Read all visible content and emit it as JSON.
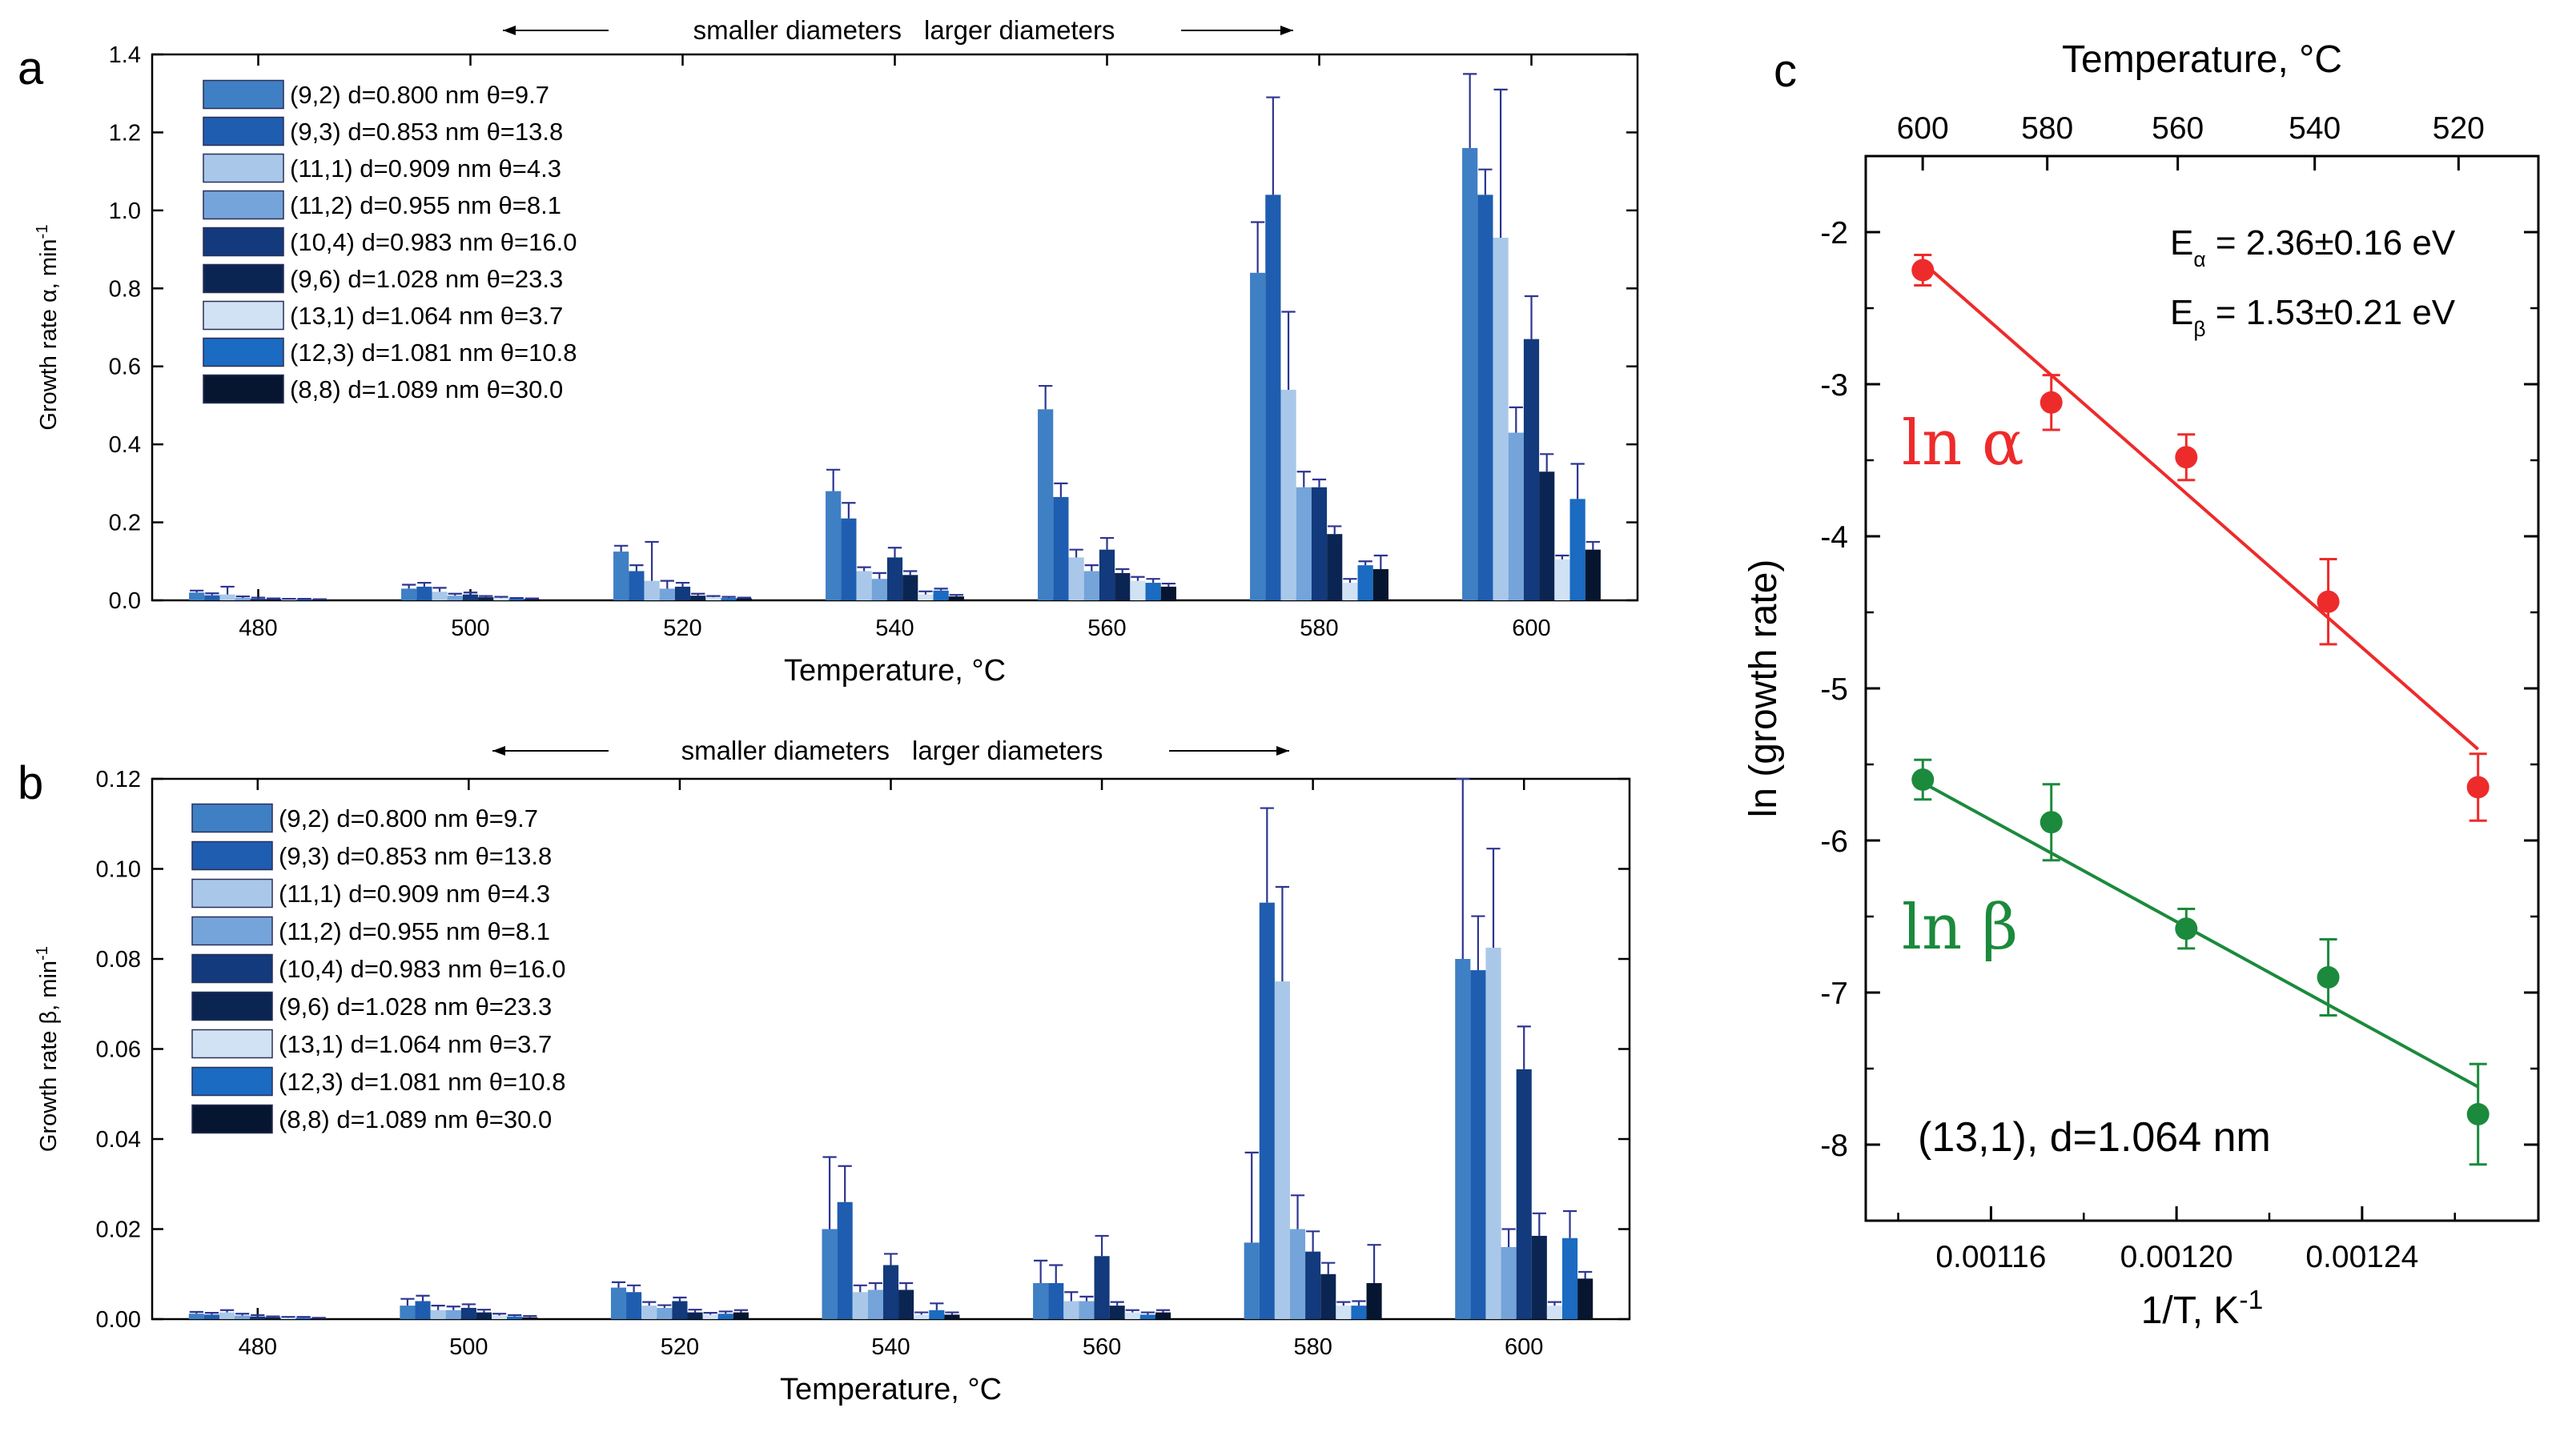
{
  "chart_data": [
    {
      "panel": "a",
      "type": "bar",
      "categories": [
        "480",
        "500",
        "520",
        "540",
        "560",
        "580",
        "600"
      ],
      "xlabel": "Temperature, °C",
      "ylabel": "Growth rate α, min-1",
      "ylim": [
        0,
        1.4
      ],
      "yticks": [
        "0.0",
        "0.2",
        "0.4",
        "0.6",
        "0.8",
        "1.0",
        "1.2",
        "1.4"
      ],
      "arrow_left": "smaller diameters",
      "arrow_right": "larger diameters",
      "legend_position": "top-left",
      "series": [
        {
          "name": "(9,2) d=0.800 nm θ=9.7",
          "color": "#3f7fc4",
          "values": [
            0.02,
            0.03,
            0.125,
            0.28,
            0.49,
            0.84,
            1.16
          ],
          "errors": [
            0.005,
            0.01,
            0.015,
            0.055,
            0.06,
            0.13,
            0.19
          ]
        },
        {
          "name": "(9,3) d=0.853 nm θ=13.8",
          "color": "#1f5db0",
          "values": [
            0.013,
            0.035,
            0.075,
            0.21,
            0.265,
            1.04,
            1.04
          ],
          "errors": [
            0.005,
            0.01,
            0.015,
            0.04,
            0.035,
            0.25,
            0.065
          ]
        },
        {
          "name": "(11,1) d=0.909 nm θ=4.3",
          "color": "#a9c8e9",
          "values": [
            0.015,
            0.022,
            0.05,
            0.075,
            0.11,
            0.54,
            0.93
          ],
          "errors": [
            0.02,
            0.01,
            0.1,
            0.01,
            0.02,
            0.2,
            0.38
          ]
        },
        {
          "name": "(11,2) d=0.955 nm θ=8.1",
          "color": "#74a4d9",
          "values": [
            0.006,
            0.012,
            0.03,
            0.055,
            0.075,
            0.29,
            0.43
          ],
          "errors": [
            0.004,
            0.005,
            0.02,
            0.015,
            0.015,
            0.04,
            0.065
          ]
        },
        {
          "name": "(10,4) d=0.983 nm θ=16.0",
          "color": "#123a7c",
          "values": [
            0.004,
            0.015,
            0.035,
            0.11,
            0.13,
            0.29,
            0.67
          ],
          "errors": [
            0.003,
            0.005,
            0.01,
            0.025,
            0.03,
            0.02,
            0.11
          ]
        },
        {
          "name": "(9,6) d=1.028 nm θ=23.3",
          "color": "#0b2553",
          "values": [
            0.003,
            0.008,
            0.012,
            0.065,
            0.07,
            0.17,
            0.33
          ],
          "errors": [
            0.002,
            0.003,
            0.005,
            0.01,
            0.01,
            0.02,
            0.045
          ]
        },
        {
          "name": "(13,1) d=1.064 nm θ=3.7",
          "color": "#d0e2f4",
          "values": [
            0.002,
            0.006,
            0.008,
            0.015,
            0.05,
            0.045,
            0.105
          ],
          "errors": [
            0.002,
            0.003,
            0.003,
            0.008,
            0.01,
            0.01,
            0.01
          ]
        },
        {
          "name": "(12,3) d=1.081 nm θ=10.8",
          "color": "#1a6bc1",
          "values": [
            0.002,
            0.004,
            0.006,
            0.025,
            0.045,
            0.09,
            0.26
          ],
          "errors": [
            0.002,
            0.002,
            0.003,
            0.005,
            0.01,
            0.01,
            0.09
          ]
        },
        {
          "name": "(8,8) d=1.089 nm θ=30.0",
          "color": "#061630",
          "values": [
            0.002,
            0.003,
            0.005,
            0.01,
            0.035,
            0.08,
            0.13
          ],
          "errors": [
            0.001,
            0.002,
            0.002,
            0.004,
            0.008,
            0.035,
            0.02
          ]
        }
      ]
    },
    {
      "panel": "b",
      "type": "bar",
      "categories": [
        "480",
        "500",
        "520",
        "540",
        "560",
        "580",
        "600"
      ],
      "xlabel": "Temperature, °C",
      "ylabel": "Growth rate β, min-1",
      "ylim": [
        0,
        0.12
      ],
      "yticks": [
        "0.00",
        "0.02",
        "0.04",
        "0.06",
        "0.08",
        "0.10",
        "0.12"
      ],
      "arrow_left": "smaller diameters",
      "arrow_right": "larger diameters",
      "legend_position": "top-left",
      "series": [
        {
          "name": "(9,2) d=0.800 nm θ=9.7",
          "color": "#3f7fc4",
          "values": [
            0.0012,
            0.003,
            0.007,
            0.02,
            0.008,
            0.017,
            0.08
          ],
          "errors": [
            0.0004,
            0.0015,
            0.0012,
            0.016,
            0.005,
            0.02,
            0.04
          ]
        },
        {
          "name": "(9,3) d=0.853 nm θ=13.8",
          "color": "#1f5db0",
          "values": [
            0.001,
            0.004,
            0.006,
            0.026,
            0.008,
            0.0925,
            0.0775
          ],
          "errors": [
            0.0004,
            0.0012,
            0.0015,
            0.008,
            0.004,
            0.021,
            0.012
          ]
        },
        {
          "name": "(11,1) d=0.909 nm θ=4.3",
          "color": "#a9c8e9",
          "values": [
            0.0015,
            0.002,
            0.003,
            0.006,
            0.004,
            0.075,
            0.0825
          ],
          "errors": [
            0.0005,
            0.001,
            0.0008,
            0.0015,
            0.002,
            0.021,
            0.022
          ]
        },
        {
          "name": "(11,2) d=0.955 nm θ=8.1",
          "color": "#74a4d9",
          "values": [
            0.0008,
            0.002,
            0.0025,
            0.0065,
            0.004,
            0.02,
            0.016
          ],
          "errors": [
            0.0004,
            0.0008,
            0.0006,
            0.0015,
            0.001,
            0.0075,
            0.004
          ]
        },
        {
          "name": "(10,4) d=0.983 nm θ=16.0",
          "color": "#123a7c",
          "values": [
            0.0006,
            0.0025,
            0.004,
            0.012,
            0.014,
            0.015,
            0.0555
          ],
          "errors": [
            0.0003,
            0.0008,
            0.0008,
            0.0025,
            0.0045,
            0.0045,
            0.0095
          ]
        },
        {
          "name": "(9,6) d=1.028 nm θ=23.3",
          "color": "#0b2553",
          "values": [
            0.0004,
            0.0015,
            0.0015,
            0.0065,
            0.003,
            0.01,
            0.0185
          ],
          "errors": [
            0.0002,
            0.0006,
            0.0006,
            0.0015,
            0.0008,
            0.0025,
            0.005
          ]
        },
        {
          "name": "(13,1) d=1.064 nm θ=3.7",
          "color": "#d0e2f4",
          "values": [
            0.0003,
            0.0008,
            0.001,
            0.001,
            0.0015,
            0.003,
            0.003
          ],
          "errors": [
            0.0002,
            0.0004,
            0.0004,
            0.0005,
            0.0005,
            0.0008,
            0.0008
          ]
        },
        {
          "name": "(12,3) d=1.081 nm θ=10.8",
          "color": "#1a6bc1",
          "values": [
            0.0003,
            0.0006,
            0.0012,
            0.002,
            0.001,
            0.003,
            0.018
          ],
          "errors": [
            0.0002,
            0.0003,
            0.0005,
            0.0015,
            0.0005,
            0.001,
            0.006
          ]
        },
        {
          "name": "(8,8) d=1.089 nm θ=30.0",
          "color": "#061630",
          "values": [
            0.0002,
            0.0004,
            0.0015,
            0.001,
            0.0015,
            0.008,
            0.009
          ],
          "errors": [
            0.0001,
            0.0003,
            0.0005,
            0.0005,
            0.0005,
            0.0085,
            0.0015
          ]
        }
      ]
    },
    {
      "panel": "c",
      "type": "scatter",
      "xlabel": "1/T, K-1",
      "ylabel": "ln (growth rate)",
      "top_xlabel": "Temperature, °C",
      "xlim": [
        0.001133,
        0.001278
      ],
      "ylim": [
        -8.5,
        -1.5
      ],
      "xticks": [
        0.00116,
        0.0012,
        0.00124
      ],
      "xtick_labels": [
        "0.00116",
        "0.00120",
        "0.00124"
      ],
      "yticks": [
        "-2",
        "-3",
        "-4",
        "-5",
        "-6",
        "-7",
        "-8"
      ],
      "top_ticks": [
        "600",
        "580",
        "560",
        "540",
        "520"
      ],
      "annotations": {
        "e_alpha": "E",
        "e_alpha_sub": "α",
        "e_alpha_value": " = 2.36±0.16 eV",
        "e_beta": "E",
        "e_beta_sub": "β",
        "e_beta_value": " = 1.53±0.21 eV",
        "chirality": "(13,1), d=1.064 nm"
      },
      "series": [
        {
          "name": "ln α",
          "color": "#ee2b2b",
          "x": [
            0.0011453,
            0.001173,
            0.0012021,
            0.0012327,
            0.001265
          ],
          "y": [
            -2.25,
            -3.12,
            -3.48,
            -4.43,
            -5.65
          ],
          "errors": [
            0.1,
            0.18,
            0.15,
            0.28,
            0.22
          ],
          "fit": {
            "x": [
              0.0011453,
              0.001265
            ],
            "y": [
              -2.2,
              -5.4
            ]
          }
        },
        {
          "name": "ln β",
          "color": "#1b8a3c",
          "x": [
            0.0011453,
            0.001173,
            0.0012021,
            0.0012327,
            0.001265
          ],
          "y": [
            -5.6,
            -5.88,
            -6.58,
            -6.9,
            -7.8
          ],
          "errors": [
            0.13,
            0.25,
            0.13,
            0.25,
            0.33
          ],
          "fit": {
            "x": [
              0.0011453,
              0.001265
            ],
            "y": [
              -5.62,
              -7.62
            ]
          }
        }
      ]
    }
  ]
}
